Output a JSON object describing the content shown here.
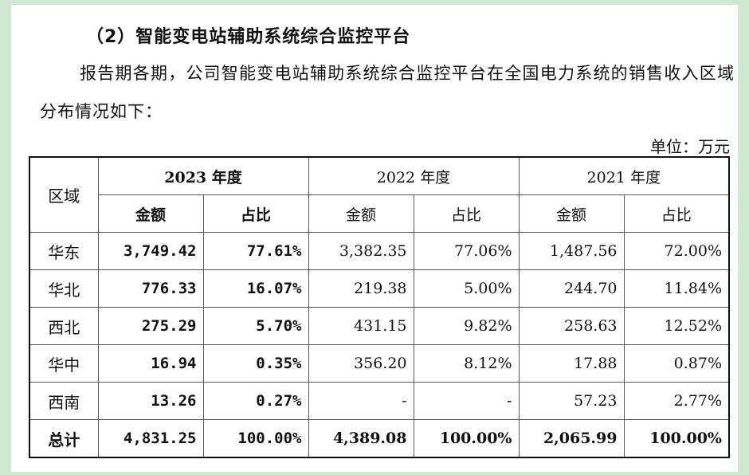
{
  "heading": "（2）智能变电站辅助系统综合监控平台",
  "paragraph": "报告期各期，公司智能变电站辅助系统综合监控平台在全国电力系统的销售收入区域分布情况如下：",
  "unit": "单位：万元",
  "table": {
    "region_header": "区域",
    "years": [
      "2023 年度",
      "2022 年度",
      "2021 年度"
    ],
    "sub_headers": [
      "金额",
      "占比"
    ],
    "rows": [
      {
        "region": "华东",
        "v2023": "3,749.42",
        "p2023": "77.61%",
        "v2022": "3,382.35",
        "p2022": "77.06%",
        "v2021": "1,487.56",
        "p2021": "72.00%"
      },
      {
        "region": "华北",
        "v2023": "776.33",
        "p2023": "16.07%",
        "v2022": "219.38",
        "p2022": "5.00%",
        "v2021": "244.70",
        "p2021": "11.84%"
      },
      {
        "region": "西北",
        "v2023": "275.29",
        "p2023": "5.70%",
        "v2022": "431.15",
        "p2022": "9.82%",
        "v2021": "258.63",
        "p2021": "12.52%"
      },
      {
        "region": "华中",
        "v2023": "16.94",
        "p2023": "0.35%",
        "v2022": "356.20",
        "p2022": "8.12%",
        "v2021": "17.88",
        "p2021": "0.87%"
      },
      {
        "region": "西南",
        "v2023": "13.26",
        "p2023": "0.27%",
        "v2022": "-",
        "p2022": "-",
        "v2021": "57.23",
        "p2021": "2.77%"
      }
    ],
    "total": {
      "region": "总计",
      "v2023": "4,831.25",
      "p2023": "100.00%",
      "v2022": "4,389.08",
      "p2022": "100.00%",
      "v2021": "2,065.99",
      "p2021": "100.00%"
    }
  }
}
